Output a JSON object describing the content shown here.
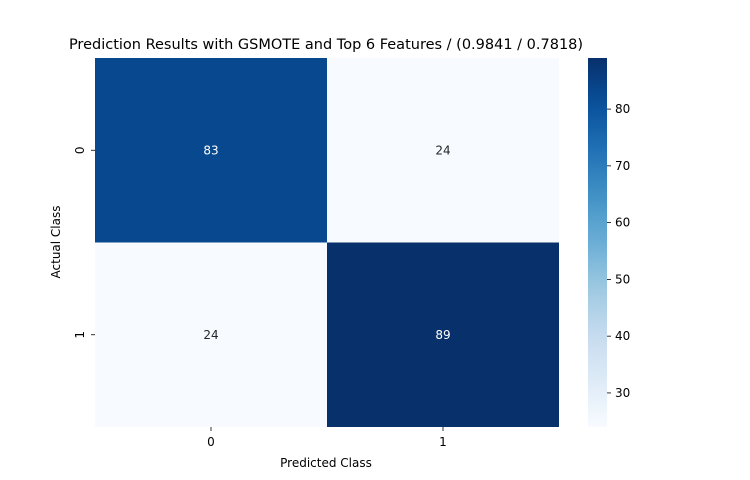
{
  "chart_data": {
    "type": "heatmap",
    "title": "Prediction Results with GSMOTE and Top 6 Features / (0.9841 / 0.7818)",
    "xlabel": "Predicted Class",
    "ylabel": "Actual Class",
    "x_categories": [
      "0",
      "1"
    ],
    "y_categories": [
      "0",
      "1"
    ],
    "values": [
      [
        83,
        24
      ],
      [
        24,
        89
      ]
    ],
    "cell_labels": [
      [
        "83",
        "24"
      ],
      [
        "24",
        "89"
      ]
    ],
    "colormap": "Blues",
    "colorbar": {
      "range": [
        24,
        89
      ],
      "ticks": [
        30,
        40,
        50,
        60,
        70,
        80
      ],
      "tick_labels": [
        "30",
        "40",
        "50",
        "60",
        "70",
        "80"
      ]
    }
  }
}
